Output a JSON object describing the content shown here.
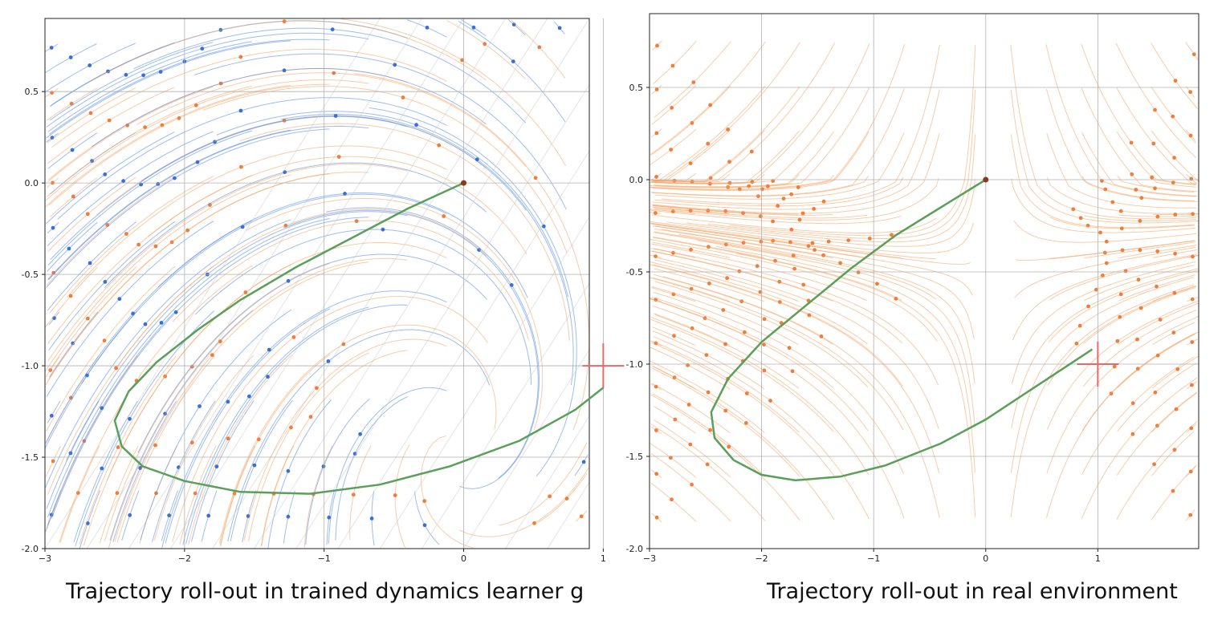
{
  "chart_data": [
    {
      "type": "line",
      "subtype": "streamplot-with-trajectory",
      "caption": "Trajectory roll-out in trained dynamics learner g",
      "xlim": [
        -3,
        0.9
      ],
      "ylim": [
        -2.0,
        0.9
      ],
      "xticks": [
        -3,
        -2,
        -1,
        0,
        1
      ],
      "xtick_labels": [
        "−3",
        "−2",
        "−1",
        "0",
        "1"
      ],
      "yticks": [
        -2.0,
        -1.5,
        -1.0,
        -0.5,
        0.0,
        0.5
      ],
      "ytick_labels": [
        "-2.0",
        "-1.5",
        "-1.0",
        "-0.5",
        "0.0",
        "0.5"
      ],
      "grid": true,
      "field_colors": [
        "#f4a261",
        "#4f86e8"
      ],
      "streamline_color_gray": "#c8c8c8",
      "trajectory_color": "#5aa05a",
      "start_point": [
        0,
        0
      ],
      "target": [
        1,
        -1
      ],
      "target_color": "#e06c6c",
      "trajectory": [
        [
          0,
          0
        ],
        [
          -0.4,
          -0.14
        ],
        [
          -0.8,
          -0.3
        ],
        [
          -1.2,
          -0.46
        ],
        [
          -1.6,
          -0.64
        ],
        [
          -1.9,
          -0.8
        ],
        [
          -2.2,
          -0.98
        ],
        [
          -2.4,
          -1.14
        ],
        [
          -2.5,
          -1.3
        ],
        [
          -2.45,
          -1.44
        ],
        [
          -2.3,
          -1.55
        ],
        [
          -2.0,
          -1.63
        ],
        [
          -1.6,
          -1.69
        ],
        [
          -1.1,
          -1.7
        ],
        [
          -0.6,
          -1.65
        ],
        [
          -0.1,
          -1.55
        ],
        [
          0.4,
          -1.41
        ],
        [
          0.8,
          -1.24
        ],
        [
          1.0,
          -1.12
        ]
      ]
    },
    {
      "type": "line",
      "subtype": "streamplot-with-trajectory",
      "caption": "Trajectory roll-out in real environment",
      "xlim": [
        -3,
        1.9
      ],
      "ylim": [
        -2.0,
        0.9
      ],
      "xticks": [
        -3,
        -2,
        -1,
        0,
        1
      ],
      "xtick_labels": [
        "−3",
        "−2",
        "−1",
        "0",
        "1"
      ],
      "yticks": [
        -2.0,
        -1.5,
        -1.0,
        -0.5,
        0.0,
        0.5
      ],
      "ytick_labels": [
        "-2.0",
        "-1.5",
        "-1.0",
        "-0.5",
        "0.0",
        "0.5"
      ],
      "grid": true,
      "field_colors": [
        "#f4a261"
      ],
      "trajectory_color": "#5aa05a",
      "start_point": [
        0,
        0
      ],
      "target": [
        1,
        -1
      ],
      "target_color": "#e06c6c",
      "trajectory": [
        [
          0,
          0
        ],
        [
          -0.4,
          -0.15
        ],
        [
          -0.8,
          -0.3
        ],
        [
          -1.2,
          -0.48
        ],
        [
          -1.6,
          -0.68
        ],
        [
          -2.0,
          -0.88
        ],
        [
          -2.3,
          -1.08
        ],
        [
          -2.45,
          -1.26
        ],
        [
          -2.42,
          -1.4
        ],
        [
          -2.25,
          -1.52
        ],
        [
          -2.0,
          -1.6
        ],
        [
          -1.7,
          -1.63
        ],
        [
          -1.3,
          -1.61
        ],
        [
          -0.9,
          -1.55
        ],
        [
          -0.4,
          -1.43
        ],
        [
          0.0,
          -1.3
        ],
        [
          0.4,
          -1.14
        ],
        [
          0.8,
          -0.98
        ],
        [
          0.95,
          -0.92
        ]
      ]
    }
  ]
}
